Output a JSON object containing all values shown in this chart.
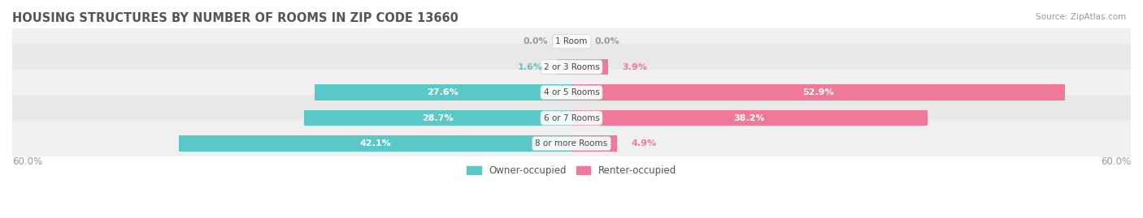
{
  "title": "HOUSING STRUCTURES BY NUMBER OF ROOMS IN ZIP CODE 13660",
  "source": "Source: ZipAtlas.com",
  "categories": [
    "1 Room",
    "2 or 3 Rooms",
    "4 or 5 Rooms",
    "6 or 7 Rooms",
    "8 or more Rooms"
  ],
  "owner_values": [
    0.0,
    1.6,
    27.6,
    28.7,
    42.1
  ],
  "renter_values": [
    0.0,
    3.9,
    52.9,
    38.2,
    4.9
  ],
  "x_min": -60.0,
  "x_max": 60.0,
  "owner_color": "#5BC8C8",
  "renter_color": "#F07898",
  "row_bg_even": "#F0F0F0",
  "row_bg_odd": "#E8E8E8",
  "bar_height": 0.62,
  "title_color": "#555555",
  "axis_label_color": "#999999",
  "legend_owner": "Owner-occupied",
  "legend_renter": "Renter-occupied",
  "label_fontsize": 8.0,
  "title_fontsize": 10.5
}
